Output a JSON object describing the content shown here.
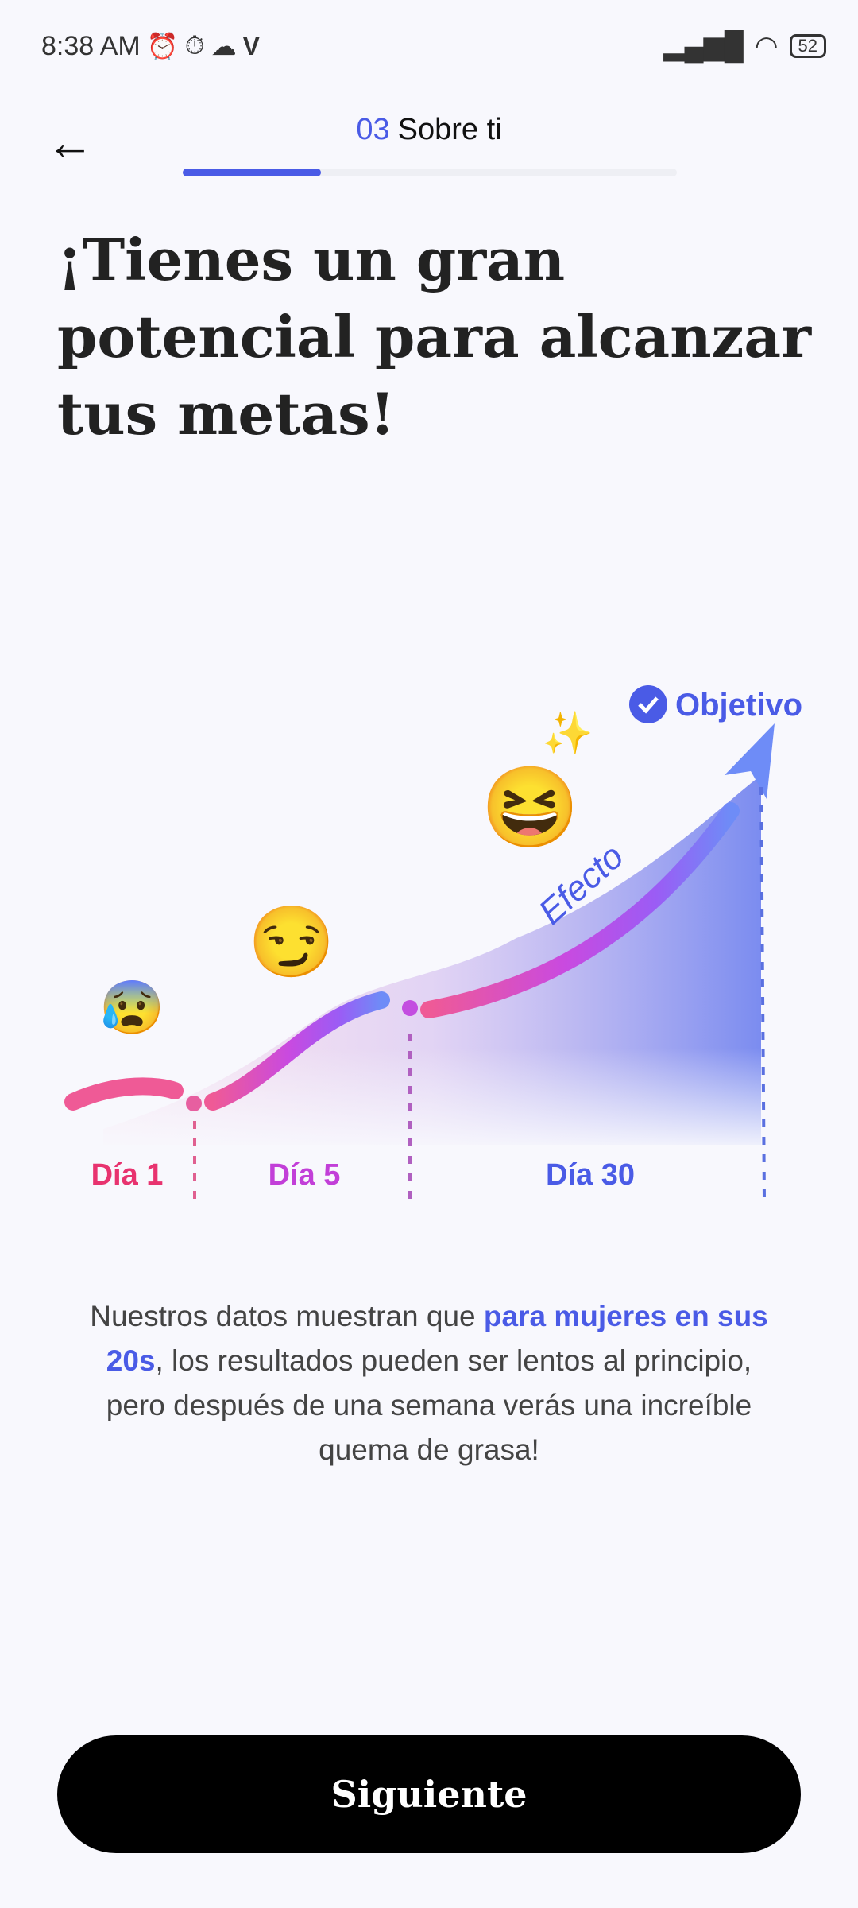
{
  "status_bar": {
    "time": "8:38 AM",
    "battery": "52"
  },
  "header": {
    "step_number": "03",
    "step_title": "Sobre ti",
    "progress_percent": 28
  },
  "title": "¡Tienes un gran potencial para alcanzar tus metas!",
  "chart": {
    "goal_label": "Objetivo",
    "effect_label": "Efecto",
    "days": [
      "Día 1",
      "Día 5",
      "Día 30"
    ],
    "colors": {
      "day1": "#e8336f",
      "day5": "#c23fd8",
      "day30": "#4a5be6"
    }
  },
  "description": {
    "part1": "Nuestros datos muestran que ",
    "highlight": "para mujeres en sus 20s",
    "part2": ", los resultados pueden ser lentos al principio, pero después de una semana verás una increíble quema de grasa!"
  },
  "next_button": "Siguiente"
}
